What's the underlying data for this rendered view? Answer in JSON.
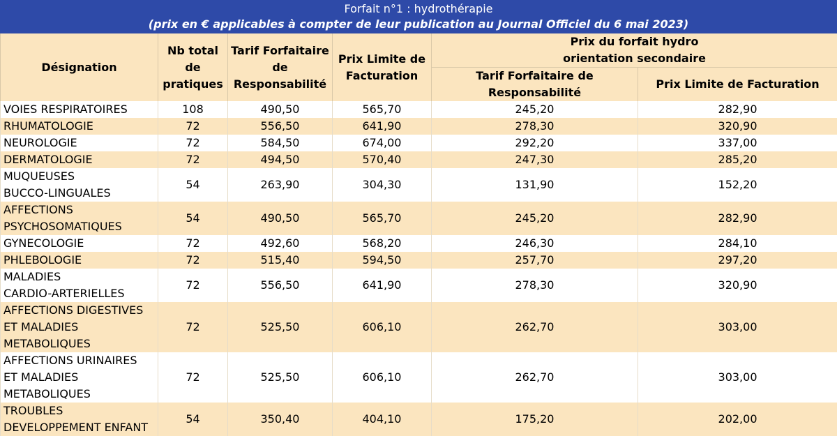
{
  "header": {
    "title": "Forfait n°1 : hydrothérapie",
    "subtitle": "(prix en € applicables à compter de leur publication au Journal Officiel du 6 mai 2023)"
  },
  "columns": {
    "designation": "Désignation",
    "nb_total": [
      "Nb total",
      "de",
      "pratiques"
    ],
    "tarif": [
      "Tarif Forfaitaire",
      "de",
      "Responsabilité"
    ],
    "prix_limite": [
      "Prix Limite de",
      "Facturation"
    ],
    "secondary_group": [
      "Prix du forfait hydro",
      "orientation secondaire"
    ],
    "sec_tarif": [
      "Tarif Forfaitaire de",
      "Responsabilité"
    ],
    "sec_prix": "Prix Limite de Facturation"
  },
  "rows": [
    {
      "name": [
        "VOIES RESPIRATOIRES"
      ],
      "nb": "108",
      "tarif": "490,50",
      "prix": "565,70",
      "sec_tarif": "245,20",
      "sec_prix": "282,90"
    },
    {
      "name": [
        "RHUMATOLOGIE"
      ],
      "nb": "72",
      "tarif": "556,50",
      "prix": "641,90",
      "sec_tarif": "278,30",
      "sec_prix": "320,90"
    },
    {
      "name": [
        "NEUROLOGIE"
      ],
      "nb": "72",
      "tarif": "584,50",
      "prix": "674,00",
      "sec_tarif": "292,20",
      "sec_prix": "337,00"
    },
    {
      "name": [
        "DERMATOLOGIE"
      ],
      "nb": "72",
      "tarif": "494,50",
      "prix": "570,40",
      "sec_tarif": "247,30",
      "sec_prix": "285,20"
    },
    {
      "name": [
        "MUQUEUSES",
        "BUCCO-LINGUALES"
      ],
      "nb": "54",
      "tarif": "263,90",
      "prix": "304,30",
      "sec_tarif": "131,90",
      "sec_prix": "152,20"
    },
    {
      "name": [
        "AFFECTIONS",
        "PSYCHOSOMATIQUES"
      ],
      "nb": "54",
      "tarif": "490,50",
      "prix": "565,70",
      "sec_tarif": "245,20",
      "sec_prix": "282,90"
    },
    {
      "name": [
        "GYNECOLOGIE"
      ],
      "nb": "72",
      "tarif": "492,60",
      "prix": "568,20",
      "sec_tarif": "246,30",
      "sec_prix": "284,10"
    },
    {
      "name": [
        "PHLEBOLOGIE"
      ],
      "nb": "72",
      "tarif": "515,40",
      "prix": "594,50",
      "sec_tarif": "257,70",
      "sec_prix": "297,20"
    },
    {
      "name": [
        "MALADIES",
        "CARDIO-ARTERIELLES"
      ],
      "nb": "72",
      "tarif": "556,50",
      "prix": "641,90",
      "sec_tarif": "278,30",
      "sec_prix": "320,90"
    },
    {
      "name": [
        "AFFECTIONS DIGESTIVES",
        "ET MALADIES",
        "METABOLIQUES"
      ],
      "nb": "72",
      "tarif": "525,50",
      "prix": "606,10",
      "sec_tarif": "262,70",
      "sec_prix": "303,00"
    },
    {
      "name": [
        "AFFECTIONS URINAIRES",
        "ET MALADIES",
        "METABOLIQUES"
      ],
      "nb": "72",
      "tarif": "525,50",
      "prix": "606,10",
      "sec_tarif": "262,70",
      "sec_prix": "303,00"
    },
    {
      "name": [
        "TROUBLES",
        "DEVELOPPEMENT ENFANT"
      ],
      "nb": "54",
      "tarif": "350,40",
      "prix": "404,10",
      "sec_tarif": "175,20",
      "sec_prix": "202,00"
    }
  ]
}
